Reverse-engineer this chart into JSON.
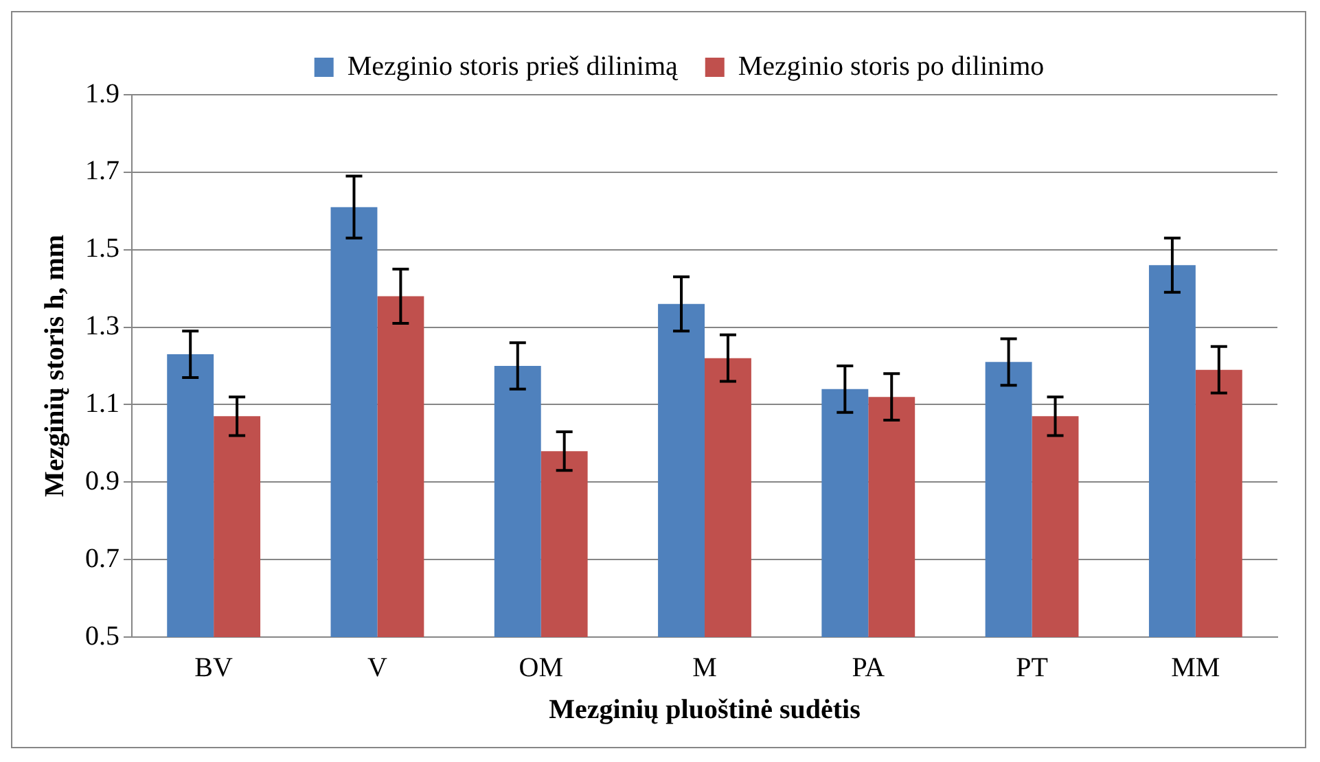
{
  "chart_data": {
    "type": "bar",
    "xlabel": "Mezginių pluoštinė sudėtis",
    "ylabel": "Mezginių storis h, mm",
    "categories": [
      "BV",
      "V",
      "OM",
      "M",
      "PA",
      "PT",
      "MM"
    ],
    "series": [
      {
        "name": "Mezginio storis prieš dilinimą",
        "color": "#4f81bd",
        "values": [
          1.23,
          1.61,
          1.2,
          1.36,
          1.14,
          1.21,
          1.46
        ],
        "errors": [
          0.06,
          0.08,
          0.06,
          0.07,
          0.06,
          0.06,
          0.07
        ]
      },
      {
        "name": "Mezginio storis po dilinimo",
        "color": "#c0504d",
        "values": [
          1.07,
          1.38,
          0.98,
          1.22,
          1.12,
          1.07,
          1.19
        ],
        "errors": [
          0.05,
          0.07,
          0.05,
          0.06,
          0.06,
          0.05,
          0.06
        ]
      }
    ],
    "ylim": [
      0.5,
      1.9
    ],
    "yticks": [
      0.5,
      0.7,
      0.9,
      1.1,
      1.3,
      1.5,
      1.7,
      1.9
    ],
    "grid": "y",
    "legend": "top"
  }
}
